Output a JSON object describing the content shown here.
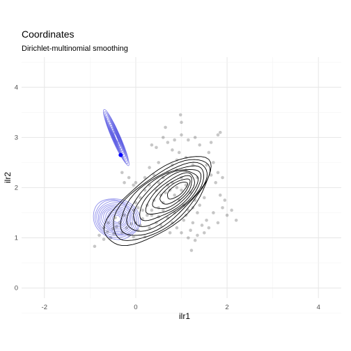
{
  "chart_data": {
    "type": "scatter",
    "title": "Coordinates",
    "subtitle": "Dirichlet-multinomial smoothing",
    "xlabel": "ilr1",
    "ylabel": "ilr2",
    "xlim": [
      -2.5,
      4.5
    ],
    "ylim": [
      -0.2,
      4.6
    ],
    "x_ticks": [
      -2,
      0,
      2,
      4
    ],
    "y_ticks": [
      0,
      1,
      2,
      3,
      4
    ],
    "grid": true,
    "legend": "none",
    "colors": {
      "points": "#000000",
      "data_contours": "#000000",
      "smoothed_contours": "#3333dd",
      "highlight_point": "#0000ff",
      "grid_major": "#e6e6e6",
      "grid_minor": "#f3f3f3"
    },
    "highlight_point": {
      "x": -0.33,
      "y": 2.65
    },
    "series": [
      {
        "type": "scatter",
        "points": [
          [
            -0.9,
            0.83
          ],
          [
            -0.7,
            0.97
          ],
          [
            -0.55,
            1.0
          ],
          [
            -0.48,
            1.08
          ],
          [
            -0.62,
            1.12
          ],
          [
            -0.5,
            1.18
          ],
          [
            -0.42,
            1.22
          ],
          [
            -0.3,
            1.1
          ],
          [
            -0.2,
            1.2
          ],
          [
            -0.15,
            1.05
          ],
          [
            -0.1,
            1.28
          ],
          [
            0.0,
            1.3
          ],
          [
            0.1,
            1.25
          ],
          [
            0.05,
            1.15
          ],
          [
            -0.05,
            1.02
          ],
          [
            0.2,
            1.02
          ],
          [
            0.15,
            1.38
          ],
          [
            0.3,
            1.2
          ],
          [
            0.35,
            1.45
          ],
          [
            0.45,
            1.3
          ],
          [
            0.5,
            1.42
          ],
          [
            0.55,
            1.25
          ],
          [
            0.6,
            1.55
          ],
          [
            0.7,
            1.4
          ],
          [
            0.75,
            1.1
          ],
          [
            0.8,
            1.3
          ],
          [
            0.85,
            1.5
          ],
          [
            0.9,
            1.2
          ],
          [
            1.0,
            1.1
          ],
          [
            1.05,
            1.35
          ],
          [
            1.1,
            1.45
          ],
          [
            1.15,
            1.0
          ],
          [
            1.2,
            1.15
          ],
          [
            1.25,
            1.3
          ],
          [
            1.3,
            0.95
          ],
          [
            1.35,
            1.05
          ],
          [
            1.22,
            0.75
          ],
          [
            1.45,
            1.25
          ],
          [
            1.5,
            1.1
          ],
          [
            1.55,
            1.35
          ],
          [
            1.6,
            1.2
          ],
          [
            1.7,
            1.5
          ],
          [
            1.8,
            1.3
          ],
          [
            1.9,
            1.6
          ],
          [
            2.0,
            1.45
          ],
          [
            2.1,
            1.55
          ],
          [
            2.2,
            1.35
          ],
          [
            1.95,
            1.75
          ],
          [
            1.85,
            1.85
          ],
          [
            1.75,
            2.1
          ],
          [
            1.8,
            2.3
          ],
          [
            1.7,
            2.5
          ],
          [
            1.9,
            2.2
          ],
          [
            1.6,
            2.7
          ],
          [
            1.65,
            2.9
          ],
          [
            1.85,
            3.1
          ],
          [
            1.8,
            3.05
          ],
          [
            1.4,
            2.85
          ],
          [
            1.3,
            3.0
          ],
          [
            1.15,
            2.95
          ],
          [
            1.0,
            3.05
          ],
          [
            0.85,
            2.95
          ],
          [
            0.7,
            2.9
          ],
          [
            0.6,
            3.0
          ],
          [
            0.45,
            2.8
          ],
          [
            0.35,
            2.85
          ],
          [
            1.0,
            3.3
          ],
          [
            0.98,
            3.45
          ],
          [
            0.65,
            3.2
          ],
          [
            0.8,
            2.75
          ],
          [
            0.95,
            2.7
          ],
          [
            1.1,
            2.6
          ],
          [
            1.25,
            2.45
          ],
          [
            1.35,
            2.2
          ],
          [
            1.45,
            2.0
          ],
          [
            1.5,
            1.8
          ],
          [
            1.4,
            1.65
          ],
          [
            1.3,
            1.75
          ],
          [
            1.2,
            1.9
          ],
          [
            1.1,
            2.05
          ],
          [
            1.0,
            2.2
          ],
          [
            0.9,
            2.35
          ],
          [
            0.8,
            2.45
          ],
          [
            0.7,
            2.3
          ],
          [
            0.6,
            2.2
          ],
          [
            0.5,
            2.1
          ],
          [
            0.4,
            2.25
          ],
          [
            0.3,
            2.05
          ],
          [
            0.2,
            1.95
          ],
          [
            0.1,
            1.8
          ],
          [
            0.0,
            1.7
          ],
          [
            -0.05,
            1.55
          ],
          [
            0.05,
            1.6
          ],
          [
            0.25,
            1.65
          ],
          [
            0.4,
            1.75
          ],
          [
            0.55,
            1.85
          ],
          [
            0.65,
            1.9
          ],
          [
            0.75,
            1.95
          ],
          [
            0.85,
            1.85
          ],
          [
            0.95,
            1.75
          ],
          [
            1.05,
            1.65
          ],
          [
            1.15,
            1.55
          ],
          [
            1.25,
            1.6
          ],
          [
            1.35,
            1.5
          ],
          [
            0.9,
            2.0
          ],
          [
            1.0,
            1.95
          ],
          [
            0.8,
            2.1
          ],
          [
            0.7,
            2.05
          ],
          [
            0.6,
            1.7
          ],
          [
            0.5,
            1.6
          ],
          [
            0.45,
            1.95
          ],
          [
            0.35,
            1.55
          ],
          [
            0.25,
            1.45
          ],
          [
            0.15,
            1.55
          ],
          [
            -0.25,
            1.45
          ],
          [
            -0.35,
            1.3
          ],
          [
            -0.45,
            1.4
          ],
          [
            -0.6,
            1.3
          ],
          [
            -0.7,
            1.2
          ],
          [
            -0.8,
            1.05
          ],
          [
            -0.3,
            2.3
          ],
          [
            -0.25,
            2.1
          ],
          [
            -0.15,
            2.2
          ],
          [
            -0.05,
            2.05
          ],
          [
            0.3,
            2.4
          ],
          [
            0.5,
            2.5
          ],
          [
            1.55,
            2.45
          ],
          [
            1.65,
            2.25
          ],
          [
            0.9,
            2.55
          ],
          [
            1.1,
            2.35
          ],
          [
            0.2,
            2.2
          ],
          [
            0.0,
            2.1
          ]
        ]
      }
    ]
  }
}
